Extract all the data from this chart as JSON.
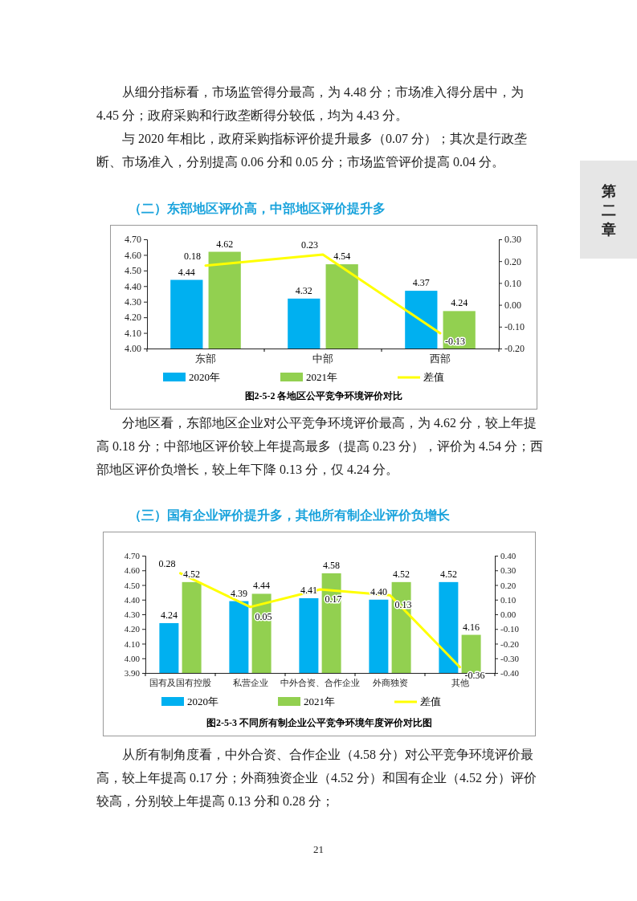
{
  "chart_data": [
    {
      "type": "bar",
      "title": "（二）东部地区评价高，中部地区评价提升多",
      "subtitle": "图2-5-2 各地区公平竞争环境评价对比",
      "annotations": [
        "从细分指标看，市场监管得分最高，为 4.48 分；市场准入得分居中，为 4.45 分；政府采购和行政垄断得分较低，均为 4.43 分。",
        "与 2020 年相比，政府采购指标评价提升最多（0.07 分）；其次是行政垄断、市场准入，分别提高 0.06 分和 0.05 分；市场监管评价提高 0.04 分。",
        "分地区看，东部地区企业对公平竞争环境评价最高，为 4.62 分，较上年提高 0.18 分；中部地区评价较上年提高最多（提高 0.23 分），评价为 4.54 分；西部地区评价负增长，较上年下降 0.13 分，仅 4.24 分。",
        "第二章"
      ],
      "categories": [
        "东部",
        "中部",
        "西部"
      ],
      "series": [
        {
          "name": "2020年",
          "color": "#00b0f0",
          "values": [
            4.44,
            4.32,
            4.37
          ],
          "value_labels": [
            "4.44",
            "4.32",
            "4.37"
          ]
        },
        {
          "name": "2021年",
          "color": "#92d050",
          "values": [
            4.62,
            4.54,
            4.24
          ],
          "value_labels": [
            "4.62",
            "4.54",
            "4.24"
          ]
        },
        {
          "name": "差值",
          "type": "line",
          "axis": "y2",
          "color": "#ffff00",
          "values": [
            0.18,
            0.23,
            -0.13
          ],
          "value_labels": [
            "0.18",
            "0.23",
            "-0.13"
          ]
        }
      ],
      "ylim": [
        4.0,
        4.7
      ],
      "yticks": [
        {
          "value": 4.0,
          "label": "4.00"
        },
        {
          "value": 4.1,
          "label": "4.10"
        },
        {
          "value": 4.2,
          "label": "4.20"
        },
        {
          "value": 4.3,
          "label": "4.30"
        },
        {
          "value": 4.4,
          "label": "4.40"
        },
        {
          "value": 4.5,
          "label": "4.50"
        },
        {
          "value": 4.6,
          "label": "4.60"
        },
        {
          "value": 4.7,
          "label": "4.70"
        }
      ],
      "y2lim": [
        -0.2,
        0.3
      ],
      "y2ticks": [
        {
          "value": -0.2,
          "label": "-0.20"
        },
        {
          "value": -0.1,
          "label": "-0.10"
        },
        {
          "value": 0,
          "label": "0.00"
        },
        {
          "value": 0.1,
          "label": "0.10"
        },
        {
          "value": 0.2,
          "label": "0.20"
        },
        {
          "value": 0.3,
          "label": "0.30"
        }
      ],
      "legend": "bottom"
    },
    {
      "type": "bar",
      "title": "（三）国有企业评价提升多，其他所有制企业评价负增长",
      "subtitle": "图2-5-3 不同所有制企业公平竞争环境年度评价对比图",
      "annotations": [
        "从所有制角度看，中外合资、合作企业（4.58 分）对公平竞争环境评价最高，较上年提高 0.17 分；外商独资企业（4.52 分）和国有企业（4.52 分）评价较高，分别较上年提高 0.13 分和 0.28 分；",
        "21"
      ],
      "categories": [
        "国有及国有控股",
        "私营企业",
        "中外合资、合作企业",
        "外商独资",
        "其他"
      ],
      "series": [
        {
          "name": "2020年",
          "color": "#00b0f0",
          "values": [
            4.24,
            4.39,
            4.41,
            4.4,
            4.52
          ],
          "value_labels": [
            "4.24",
            "4.39",
            "4.41",
            "4.40",
            "4.52"
          ]
        },
        {
          "name": "2021年",
          "color": "#92d050",
          "values": [
            4.52,
            4.44,
            4.58,
            4.52,
            4.16
          ],
          "value_labels": [
            "4.52",
            "4.44",
            "4.58",
            "4.52",
            "4.16"
          ]
        },
        {
          "name": "差值",
          "type": "line",
          "axis": "y2",
          "color": "#ffff00",
          "values": [
            0.28,
            0.05,
            0.17,
            0.13,
            -0.36
          ],
          "value_labels": [
            "0.28",
            "0.05",
            "0.17",
            "0.13",
            "-0.36"
          ]
        }
      ],
      "ylim": [
        3.9,
        4.7
      ],
      "yticks": [
        {
          "value": 3.9,
          "label": "3.90"
        },
        {
          "value": 4.0,
          "label": "4.00"
        },
        {
          "value": 4.1,
          "label": "4.10"
        },
        {
          "value": 4.2,
          "label": "4.20"
        },
        {
          "value": 4.3,
          "label": "4.30"
        },
        {
          "value": 4.4,
          "label": "4.40"
        },
        {
          "value": 4.5,
          "label": "4.50"
        },
        {
          "value": 4.6,
          "label": "4.60"
        },
        {
          "value": 4.7,
          "label": "4.70"
        }
      ],
      "y2lim": [
        -0.4,
        0.4
      ],
      "y2ticks": [
        {
          "value": -0.4,
          "label": "-0.40"
        },
        {
          "value": -0.3,
          "label": "-0.30"
        },
        {
          "value": -0.2,
          "label": "-0.20"
        },
        {
          "value": -0.1,
          "label": "-0.10"
        },
        {
          "value": 0,
          "label": "0.00"
        },
        {
          "value": 0.1,
          "label": "0.10"
        },
        {
          "value": 0.2,
          "label": "0.20"
        },
        {
          "value": 0.3,
          "label": "0.30"
        },
        {
          "value": 0.4,
          "label": "0.40"
        }
      ],
      "legend": "bottom"
    }
  ]
}
